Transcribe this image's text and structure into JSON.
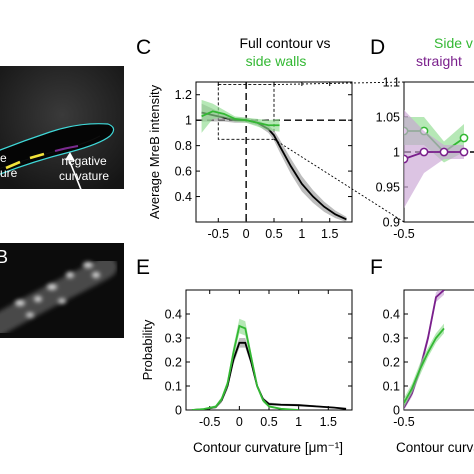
{
  "figure": {
    "panel_labels": [
      "C",
      "D",
      "E",
      "F"
    ],
    "image_panels": {
      "top": {
        "annotation_left_lines": [
          "e",
          "ure"
        ],
        "annotation_right_lines": [
          "negative",
          "curvature"
        ]
      },
      "bottom": {
        "label": "B"
      }
    },
    "headings": {
      "c_line1": "Full contour vs",
      "c_line2": "side walls",
      "d_line1": "Side v",
      "d_line2": "straight"
    },
    "colors": {
      "black": "#000000",
      "green": "#33b833",
      "purple": "#7a1f8c",
      "shade_gray": "#9a9a9a",
      "shade_green": "#8fdc8f",
      "shade_purple": "#c9a5d4"
    }
  },
  "chart_data": [
    {
      "id": "C",
      "type": "line",
      "xlabel": "",
      "ylabel": "Average MreB intensity",
      "xlim": [
        -0.9,
        1.9
      ],
      "ylim": [
        0.2,
        1.3
      ],
      "xticks": [
        "-0.5",
        "0",
        "0.5",
        "1",
        "1.5"
      ],
      "yticks": [
        "0.4",
        "0.6",
        "0.8",
        "1",
        "1.2"
      ],
      "series": [
        {
          "color": "black",
          "x": [
            -0.8,
            -0.6,
            -0.4,
            -0.2,
            0,
            0.2,
            0.4,
            0.5,
            0.6,
            0.8,
            1.0,
            1.2,
            1.4,
            1.6,
            1.8
          ],
          "y": [
            1.06,
            1.04,
            1.02,
            1.0,
            1.0,
            0.98,
            0.93,
            0.88,
            0.8,
            0.64,
            0.5,
            0.4,
            0.32,
            0.26,
            0.22
          ],
          "band": [
            0.07,
            0.05,
            0.03,
            0.02,
            0.02,
            0.02,
            0.03,
            0.04,
            0.05,
            0.06,
            0.06,
            0.05,
            0.04,
            0.03,
            0.02
          ]
        },
        {
          "color": "green",
          "x": [
            -0.8,
            -0.6,
            -0.4,
            -0.2,
            0,
            0.2,
            0.4,
            0.6
          ],
          "y": [
            1.03,
            1.07,
            1.05,
            1.01,
            1.0,
            0.98,
            0.96,
            0.96
          ],
          "band": [
            0.13,
            0.06,
            0.03,
            0.02,
            0.02,
            0.03,
            0.04,
            0.05
          ]
        }
      ],
      "reference_lines": {
        "x": 0,
        "y": 1
      },
      "zoom_box": {
        "x": [
          -0.5,
          0.5
        ],
        "y": [
          0.85,
          1.28
        ]
      }
    },
    {
      "id": "D",
      "type": "line",
      "xlabel": "",
      "ylabel": "",
      "xlim": [
        -0.5,
        0.5
      ],
      "ylim": [
        0.9,
        1.1
      ],
      "xticks": [
        "-0.5"
      ],
      "yticks": [
        "0.9",
        "0.95",
        "1",
        "1.05",
        "1.1"
      ],
      "series": [
        {
          "color": "green",
          "x": [
            -0.5,
            -0.25,
            0,
            0.25
          ],
          "y": [
            1.03,
            1.03,
            1.0,
            1.02
          ],
          "band": [
            0.02,
            0.02,
            0.015,
            0.02
          ]
        },
        {
          "color": "purple",
          "x": [
            -0.5,
            -0.25,
            0,
            0.25
          ],
          "y": [
            0.99,
            1.0,
            1.0,
            1.0
          ],
          "band": [
            0.07,
            0.03,
            0.01,
            0.01
          ]
        }
      ],
      "reference_lines": {
        "y": 1
      }
    },
    {
      "id": "E",
      "type": "line",
      "xlabel": "Contour curvature [μm⁻¹]",
      "ylabel": "Probability",
      "xlim": [
        -0.9,
        1.9
      ],
      "ylim": [
        0,
        0.5
      ],
      "xticks": [
        "-0.5",
        "0",
        "0.5",
        "1",
        "1.5"
      ],
      "yticks": [
        "0",
        "0.1",
        "0.2",
        "0.3",
        "0.4"
      ],
      "series": [
        {
          "color": "black",
          "x": [
            -0.8,
            -0.6,
            -0.4,
            -0.3,
            -0.2,
            -0.1,
            0,
            0.1,
            0.2,
            0.3,
            0.4,
            0.5,
            0.7,
            1.0,
            1.3,
            1.6,
            1.8
          ],
          "y": [
            0.0,
            0.003,
            0.012,
            0.04,
            0.1,
            0.21,
            0.28,
            0.28,
            0.2,
            0.1,
            0.045,
            0.025,
            0.022,
            0.02,
            0.015,
            0.01,
            0.005
          ],
          "band": [
            0.002,
            0.003,
            0.005,
            0.01,
            0.015,
            0.02,
            0.02,
            0.02,
            0.015,
            0.01,
            0.008,
            0.006,
            0.005,
            0.005,
            0.004,
            0.003,
            0.002
          ]
        },
        {
          "color": "green",
          "x": [
            -0.8,
            -0.6,
            -0.4,
            -0.3,
            -0.2,
            -0.1,
            0,
            0.1,
            0.2,
            0.3,
            0.4,
            0.5,
            0.7,
            1.0
          ],
          "y": [
            0.0,
            0.004,
            0.014,
            0.045,
            0.11,
            0.24,
            0.35,
            0.34,
            0.22,
            0.1,
            0.04,
            0.015,
            0.005,
            0.0
          ],
          "band": [
            0.002,
            0.003,
            0.006,
            0.01,
            0.015,
            0.025,
            0.03,
            0.03,
            0.02,
            0.01,
            0.008,
            0.005,
            0.003,
            0.002
          ]
        }
      ]
    },
    {
      "id": "F",
      "type": "line",
      "xlabel": "Contour curva",
      "ylabel": "",
      "xlim": [
        -0.5,
        0.5
      ],
      "ylim": [
        0,
        0.5
      ],
      "xticks": [
        "-0.5"
      ],
      "yticks": [
        "0",
        "0.1",
        "0.2",
        "0.3",
        "0.4"
      ],
      "series": [
        {
          "color": "purple",
          "x": [
            -0.5,
            -0.4,
            -0.3,
            -0.2,
            -0.1,
            0.0
          ],
          "y": [
            0.01,
            0.07,
            0.17,
            0.3,
            0.47,
            0.5
          ],
          "band": [
            0.01,
            0.015,
            0.02,
            0.02,
            0.02,
            0.02
          ]
        },
        {
          "color": "green",
          "x": [
            -0.5,
            -0.4,
            -0.3,
            -0.2,
            -0.1,
            0.0
          ],
          "y": [
            0.03,
            0.09,
            0.17,
            0.24,
            0.3,
            0.34
          ],
          "band": [
            0.02,
            0.02,
            0.025,
            0.02,
            0.02,
            0.02
          ]
        }
      ]
    }
  ]
}
